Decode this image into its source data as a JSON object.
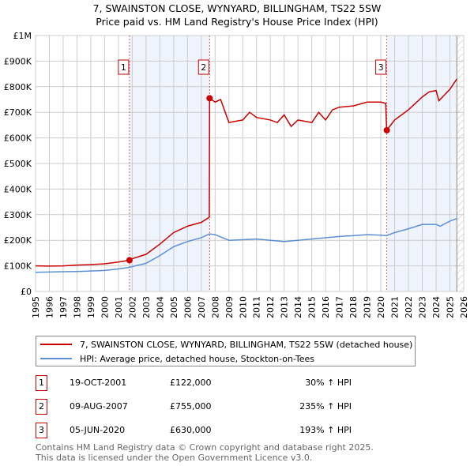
{
  "chart_data": {
    "type": "line",
    "title": "7, SWAINSTON CLOSE, WYNYARD, BILLINGHAM, TS22 5SW",
    "subtitle": "Price paid vs. HM Land Registry's House Price Index (HPI)",
    "xlim": [
      1995,
      2026
    ],
    "ylim": [
      0,
      1000000
    ],
    "x_ticks": [
      "1995",
      "1996",
      "1997",
      "1998",
      "1999",
      "2000",
      "2001",
      "2002",
      "2003",
      "2004",
      "2005",
      "2006",
      "2007",
      "2008",
      "2009",
      "2010",
      "2011",
      "2012",
      "2013",
      "2014",
      "2015",
      "2016",
      "2017",
      "2018",
      "2019",
      "2020",
      "2021",
      "2022",
      "2023",
      "2024",
      "2025",
      "2026"
    ],
    "y_ticks": [
      {
        "v": 0,
        "label": "£0"
      },
      {
        "v": 100000,
        "label": "£100K"
      },
      {
        "v": 200000,
        "label": "£200K"
      },
      {
        "v": 300000,
        "label": "£300K"
      },
      {
        "v": 400000,
        "label": "£400K"
      },
      {
        "v": 500000,
        "label": "£500K"
      },
      {
        "v": 600000,
        "label": "£600K"
      },
      {
        "v": 700000,
        "label": "£700K"
      },
      {
        "v": 800000,
        "label": "£800K"
      },
      {
        "v": 900000,
        "label": "£900K"
      },
      {
        "v": 1000000,
        "label": "£1M"
      }
    ],
    "grid": true,
    "series": [
      {
        "name": "7, SWAINSTON CLOSE, WYNYARD, BILLINGHAM, TS22 5SW (detached house)",
        "color": "#cc0000",
        "x": [
          1995,
          1996,
          1997,
          1998,
          1999,
          2000,
          2001,
          2001.8,
          2002,
          2003,
          2004,
          2005,
          2006,
          2007,
          2007.58,
          2007.6,
          2008,
          2008.4,
          2009,
          2009.5,
          2010,
          2010.5,
          2011,
          2012,
          2012.5,
          2013,
          2013.5,
          2014,
          2015,
          2015.5,
          2016,
          2016.5,
          2017,
          2018,
          2019,
          2020,
          2020.35,
          2020.42,
          2021,
          2022,
          2023,
          2023.5,
          2024,
          2024.2,
          2025,
          2025.5
        ],
        "y": [
          100000,
          99000,
          100000,
          103000,
          105000,
          108000,
          115000,
          122000,
          128000,
          145000,
          185000,
          230000,
          255000,
          270000,
          290000,
          755000,
          740000,
          750000,
          660000,
          665000,
          670000,
          700000,
          680000,
          670000,
          660000,
          690000,
          645000,
          670000,
          660000,
          700000,
          670000,
          710000,
          720000,
          725000,
          740000,
          740000,
          735000,
          630000,
          670000,
          710000,
          760000,
          780000,
          785000,
          745000,
          790000,
          830000
        ]
      },
      {
        "name": "HPI: Average price, detached house, Stockton-on-Tees",
        "color": "#5b8fd4",
        "x": [
          1995,
          1996,
          1997,
          1998,
          1999,
          2000,
          2001,
          2001.8,
          2002,
          2003,
          2004,
          2005,
          2006,
          2007,
          2007.6,
          2008,
          2009,
          2010,
          2011,
          2012,
          2013,
          2014,
          2015,
          2016,
          2017,
          2018,
          2019,
          2020,
          2020.4,
          2021,
          2022,
          2023,
          2024,
          2024.3,
          2025,
          2025.5
        ],
        "y": [
          75000,
          76000,
          77000,
          78000,
          80000,
          82000,
          88000,
          94000,
          97000,
          110000,
          140000,
          175000,
          195000,
          210000,
          225000,
          222000,
          200000,
          202000,
          205000,
          200000,
          195000,
          200000,
          205000,
          210000,
          215000,
          218000,
          222000,
          220000,
          218000,
          230000,
          245000,
          262000,
          262000,
          255000,
          275000,
          285000
        ]
      }
    ],
    "sales": [
      {
        "n": "1",
        "x": 2001.8,
        "y": 122000,
        "date": "19-OCT-2001",
        "price": "£122,000",
        "hpi": "30% ↑ HPI"
      },
      {
        "n": "2",
        "x": 2007.6,
        "y": 755000,
        "date": "09-AUG-2007",
        "price": "£755,000",
        "hpi": "235% ↑ HPI"
      },
      {
        "n": "3",
        "x": 2020.43,
        "y": 630000,
        "date": "05-JUN-2020",
        "price": "£630,000",
        "hpi": "193% ↑ HPI"
      }
    ],
    "shaded": [
      [
        2001.8,
        2007.6
      ],
      [
        2020.43,
        2025.5
      ]
    ],
    "hatched_from": 2025.5
  },
  "footer": [
    "Contains HM Land Registry data © Crown copyright and database right 2025.",
    "This data is licensed under the Open Government Licence v3.0."
  ]
}
